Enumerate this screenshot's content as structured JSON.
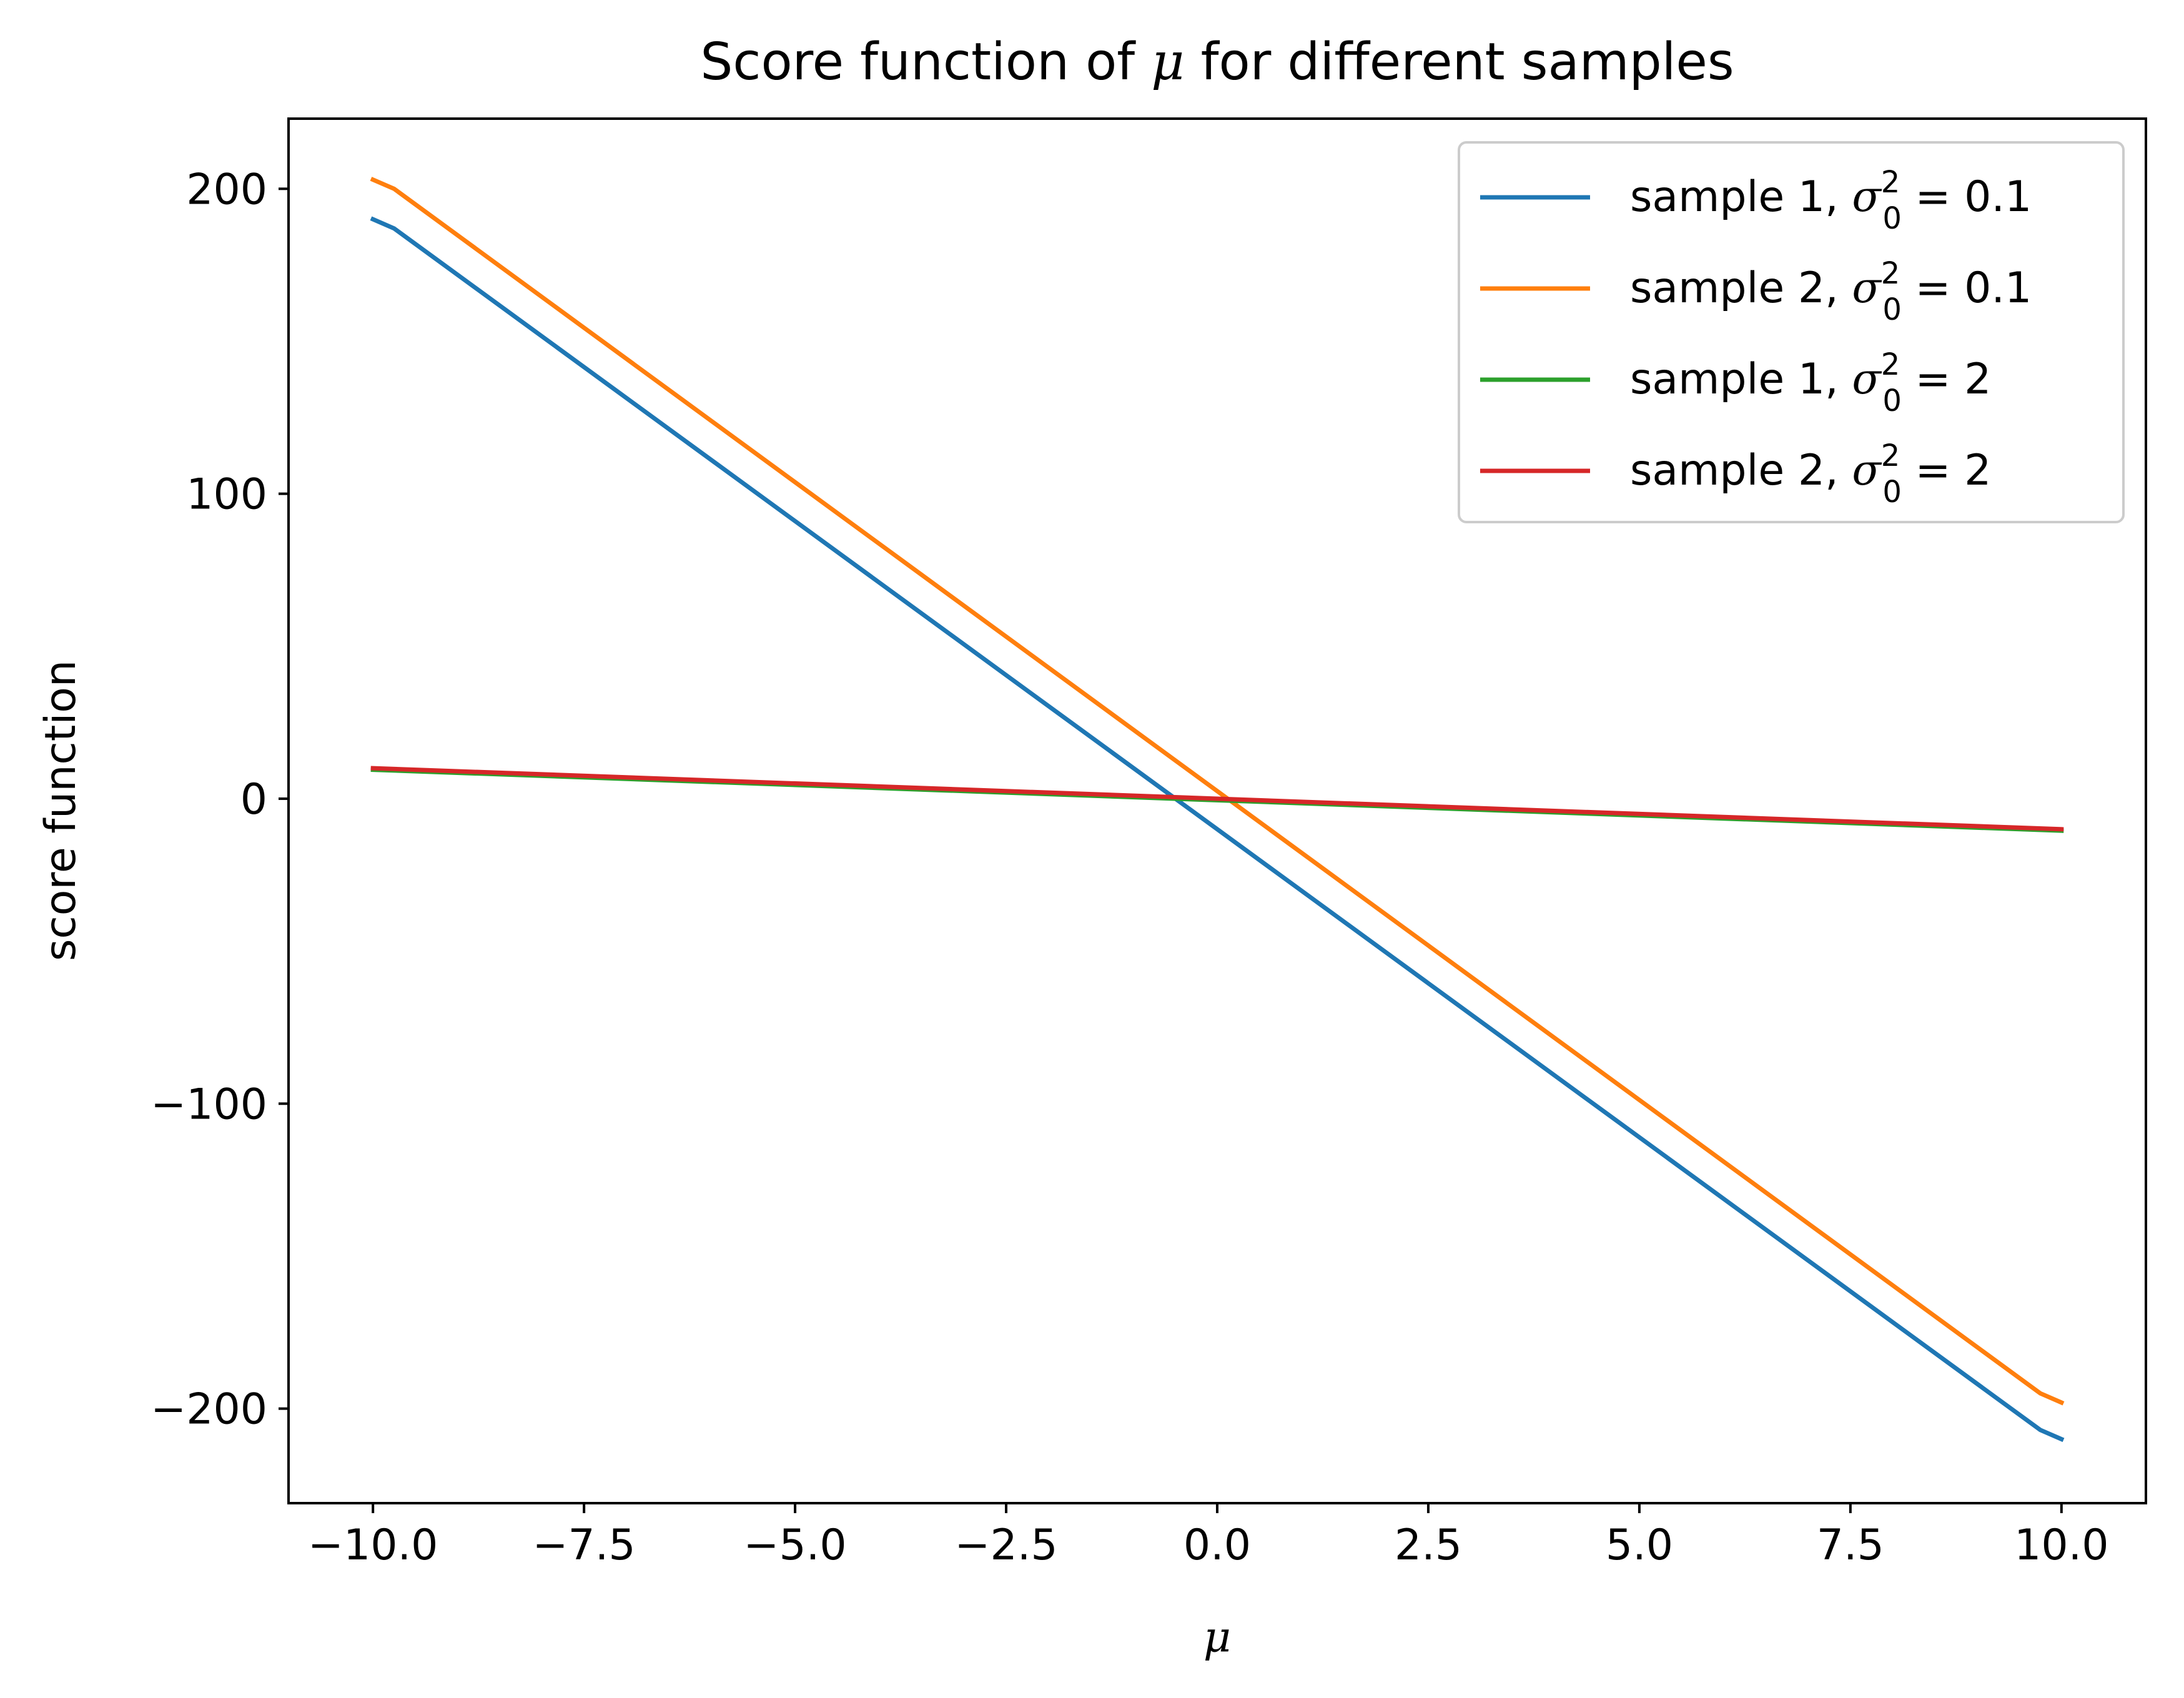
{
  "chart_data": {
    "type": "line",
    "title": {
      "text_before": "Score function of ",
      "symbol": "μ",
      "text_after": " for different samples"
    },
    "xlabel": "μ",
    "ylabel": "score function",
    "xlim": [
      -11.0,
      11.0
    ],
    "ylim": [
      -231.0,
      223.0
    ],
    "x_ticks": [
      -10.0,
      -7.5,
      -5.0,
      -2.5,
      0.0,
      2.5,
      5.0,
      7.5,
      10.0
    ],
    "x_tick_labels": [
      "−10.0",
      "−7.5",
      "−5.0",
      "−2.5",
      "0.0",
      "2.5",
      "5.0",
      "7.5",
      "10.0"
    ],
    "y_ticks": [
      -200,
      -100,
      0,
      100,
      200
    ],
    "y_tick_labels": [
      "−200",
      "−100",
      "0",
      "100",
      "200"
    ],
    "grid": false,
    "legend_position": "top-right",
    "series": [
      {
        "name": "sample 1, σ₀² = 0.1",
        "label_prefix": "sample 1, ",
        "label_value": "0.1",
        "color": "#1f77b4",
        "x": [
          -10.0,
          -9.75,
          9.75,
          10.0
        ],
        "y": [
          190,
          187,
          -207,
          -210
        ]
      },
      {
        "name": "sample 2, σ₀² = 0.1",
        "label_prefix": "sample 2, ",
        "label_value": "0.1",
        "color": "#ff7f0e",
        "x": [
          -10.0,
          -9.75,
          9.75,
          10.0
        ],
        "y": [
          203,
          200,
          -195,
          -198
        ]
      },
      {
        "name": "sample 1, σ₀² = 2",
        "label_prefix": "sample 1, ",
        "label_value": "2",
        "color": "#2ca02c",
        "x": [
          -10.0,
          10.0
        ],
        "y": [
          9.5,
          -10.5
        ]
      },
      {
        "name": "sample 2, σ₀² = 2",
        "label_prefix": "sample 2, ",
        "label_value": "2",
        "color": "#d62728",
        "x": [
          -10.0,
          10.0
        ],
        "y": [
          10.0,
          -10.0
        ]
      }
    ]
  }
}
